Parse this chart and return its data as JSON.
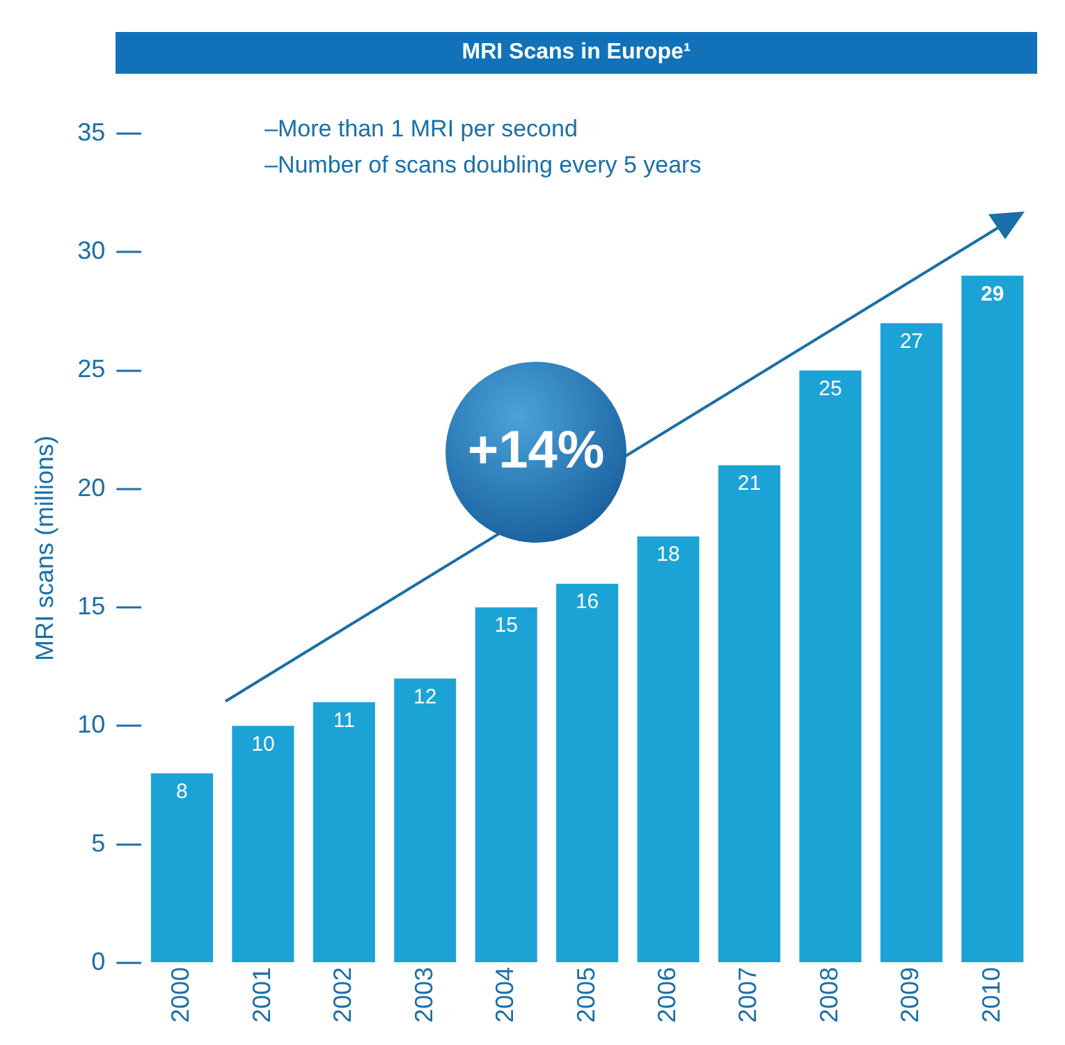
{
  "chart_data": {
    "type": "bar",
    "title": "MRI Scans in Europe¹",
    "categories": [
      "2000",
      "2001",
      "2002",
      "2003",
      "2004",
      "2005",
      "2006",
      "2007",
      "2008",
      "2009",
      "2010"
    ],
    "values": [
      8,
      10,
      11,
      12,
      15,
      16,
      18,
      21,
      25,
      27,
      29
    ],
    "color": "#1ba3d6",
    "ylabel": "MRI scans (millions)",
    "ylim": [
      0,
      35
    ],
    "yticks": [
      0,
      5,
      10,
      15,
      20,
      25,
      30,
      35
    ],
    "grid": false,
    "legend": false,
    "data_labels": true,
    "annotations": [
      "–More than 1 MRI per second",
      "–Number of scans doubling every 5 years",
      "+14%"
    ]
  }
}
